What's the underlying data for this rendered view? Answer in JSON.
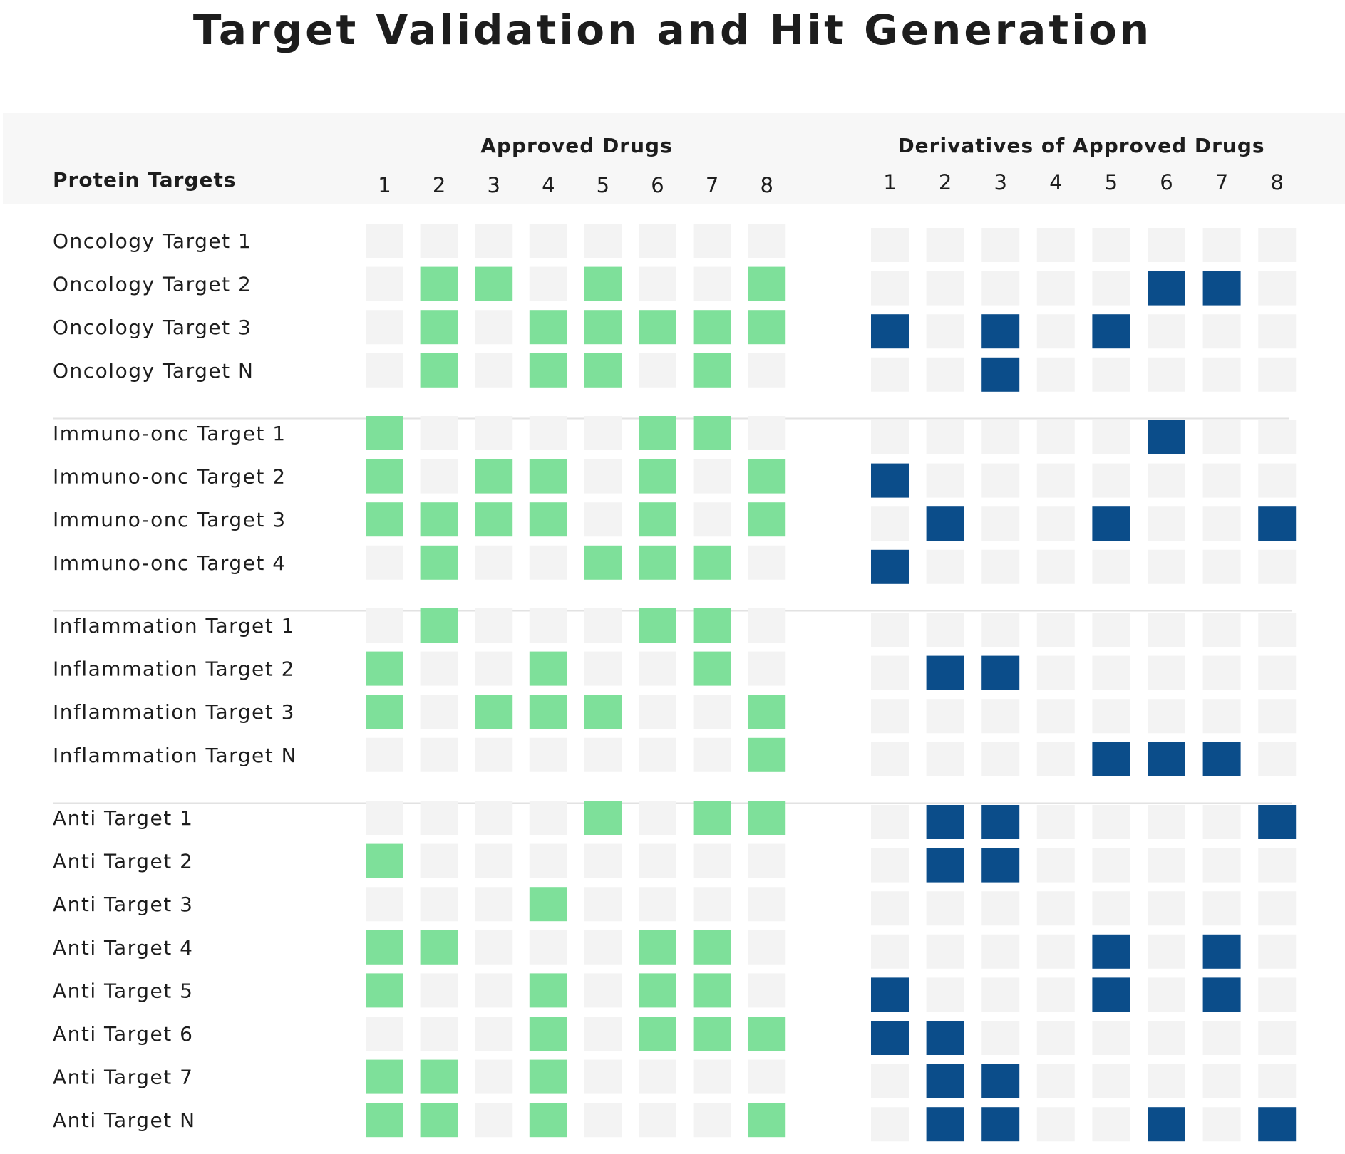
{
  "chart_data": {
    "type": "heatmap",
    "title": "Target Validation and Hit Generation",
    "row_header": "Protein Targets",
    "column_groups": [
      {
        "name": "Approved Drugs",
        "columns": [
          "1",
          "2",
          "3",
          "4",
          "5",
          "6",
          "7",
          "8"
        ],
        "active_color": "#7ee09a"
      },
      {
        "name": "Derivatives of Approved Drugs",
        "columns": [
          "1",
          "2",
          "3",
          "4",
          "5",
          "6",
          "7",
          "8"
        ],
        "active_color": "#0b4d8a"
      }
    ],
    "inactive_color": "#f3f3f3",
    "row_groups": [
      {
        "rows": [
          {
            "label": "Oncology Target 1",
            "approved": [
              0,
              0,
              0,
              0,
              0,
              0,
              0,
              0
            ],
            "derivatives": [
              0,
              0,
              0,
              0,
              0,
              0,
              0,
              0
            ]
          },
          {
            "label": "Oncology Target 2",
            "approved": [
              0,
              1,
              1,
              0,
              1,
              0,
              0,
              1
            ],
            "derivatives": [
              0,
              0,
              0,
              0,
              0,
              1,
              1,
              0
            ]
          },
          {
            "label": "Oncology Target 3",
            "approved": [
              0,
              1,
              0,
              1,
              1,
              1,
              1,
              1
            ],
            "derivatives": [
              1,
              0,
              1,
              0,
              1,
              0,
              0,
              0
            ]
          },
          {
            "label": "Oncology Target N",
            "approved": [
              0,
              1,
              0,
              1,
              1,
              0,
              1,
              0
            ],
            "derivatives": [
              0,
              0,
              1,
              0,
              0,
              0,
              0,
              0
            ]
          }
        ]
      },
      {
        "rows": [
          {
            "label": "Immuno-onc Target 1",
            "approved": [
              1,
              0,
              0,
              0,
              0,
              1,
              1,
              0
            ],
            "derivatives": [
              0,
              0,
              0,
              0,
              0,
              1,
              0,
              0
            ]
          },
          {
            "label": "Immuno-onc Target 2",
            "approved": [
              1,
              0,
              1,
              1,
              0,
              1,
              0,
              1
            ],
            "derivatives": [
              1,
              0,
              0,
              0,
              0,
              0,
              0,
              0
            ]
          },
          {
            "label": "Immuno-onc Target 3",
            "approved": [
              1,
              1,
              1,
              1,
              0,
              1,
              0,
              1
            ],
            "derivatives": [
              0,
              1,
              0,
              0,
              1,
              0,
              0,
              1
            ]
          },
          {
            "label": "Immuno-onc Target 4",
            "approved": [
              0,
              1,
              0,
              0,
              1,
              1,
              1,
              0
            ],
            "derivatives": [
              1,
              0,
              0,
              0,
              0,
              0,
              0,
              0
            ]
          }
        ]
      },
      {
        "rows": [
          {
            "label": "Inflammation Target 1",
            "approved": [
              0,
              1,
              0,
              0,
              0,
              1,
              1,
              0
            ],
            "derivatives": [
              0,
              0,
              0,
              0,
              0,
              0,
              0,
              0
            ]
          },
          {
            "label": "Inflammation Target 2",
            "approved": [
              1,
              0,
              0,
              1,
              0,
              0,
              1,
              0
            ],
            "derivatives": [
              0,
              1,
              1,
              0,
              0,
              0,
              0,
              0
            ]
          },
          {
            "label": "Inflammation Target 3",
            "approved": [
              1,
              0,
              1,
              1,
              1,
              0,
              0,
              1
            ],
            "derivatives": [
              0,
              0,
              0,
              0,
              0,
              0,
              0,
              0
            ]
          },
          {
            "label": "Inflammation Target N",
            "approved": [
              0,
              0,
              0,
              0,
              0,
              0,
              0,
              1
            ],
            "derivatives": [
              0,
              0,
              0,
              0,
              1,
              1,
              1,
              0
            ]
          }
        ]
      },
      {
        "rows": [
          {
            "label": "Anti Target 1",
            "approved": [
              0,
              0,
              0,
              0,
              1,
              0,
              1,
              1
            ],
            "derivatives": [
              0,
              1,
              1,
              0,
              0,
              0,
              0,
              1
            ]
          },
          {
            "label": "Anti Target 2",
            "approved": [
              1,
              0,
              0,
              0,
              0,
              0,
              0,
              0
            ],
            "derivatives": [
              0,
              1,
              1,
              0,
              0,
              0,
              0,
              0
            ]
          },
          {
            "label": "Anti Target 3",
            "approved": [
              0,
              0,
              0,
              1,
              0,
              0,
              0,
              0
            ],
            "derivatives": [
              0,
              0,
              0,
              0,
              0,
              0,
              0,
              0
            ]
          },
          {
            "label": "Anti Target 4",
            "approved": [
              1,
              1,
              0,
              0,
              0,
              1,
              1,
              0
            ],
            "derivatives": [
              0,
              0,
              0,
              0,
              1,
              0,
              1,
              0
            ]
          },
          {
            "label": "Anti Target 5",
            "approved": [
              1,
              0,
              0,
              1,
              0,
              1,
              1,
              0
            ],
            "derivatives": [
              1,
              0,
              0,
              0,
              1,
              0,
              1,
              0
            ]
          },
          {
            "label": "Anti Target 6",
            "approved": [
              0,
              0,
              0,
              1,
              0,
              1,
              1,
              1
            ],
            "derivatives": [
              1,
              1,
              0,
              0,
              0,
              0,
              0,
              0
            ]
          },
          {
            "label": "Anti Target 7",
            "approved": [
              1,
              1,
              0,
              1,
              0,
              0,
              0,
              0
            ],
            "derivatives": [
              0,
              1,
              1,
              0,
              0,
              0,
              0,
              0
            ]
          },
          {
            "label": "Anti Target N",
            "approved": [
              1,
              1,
              0,
              1,
              0,
              0,
              0,
              1
            ],
            "derivatives": [
              0,
              1,
              1,
              0,
              0,
              1,
              0,
              1
            ]
          }
        ]
      }
    ],
    "grid": false,
    "legend": "none"
  }
}
